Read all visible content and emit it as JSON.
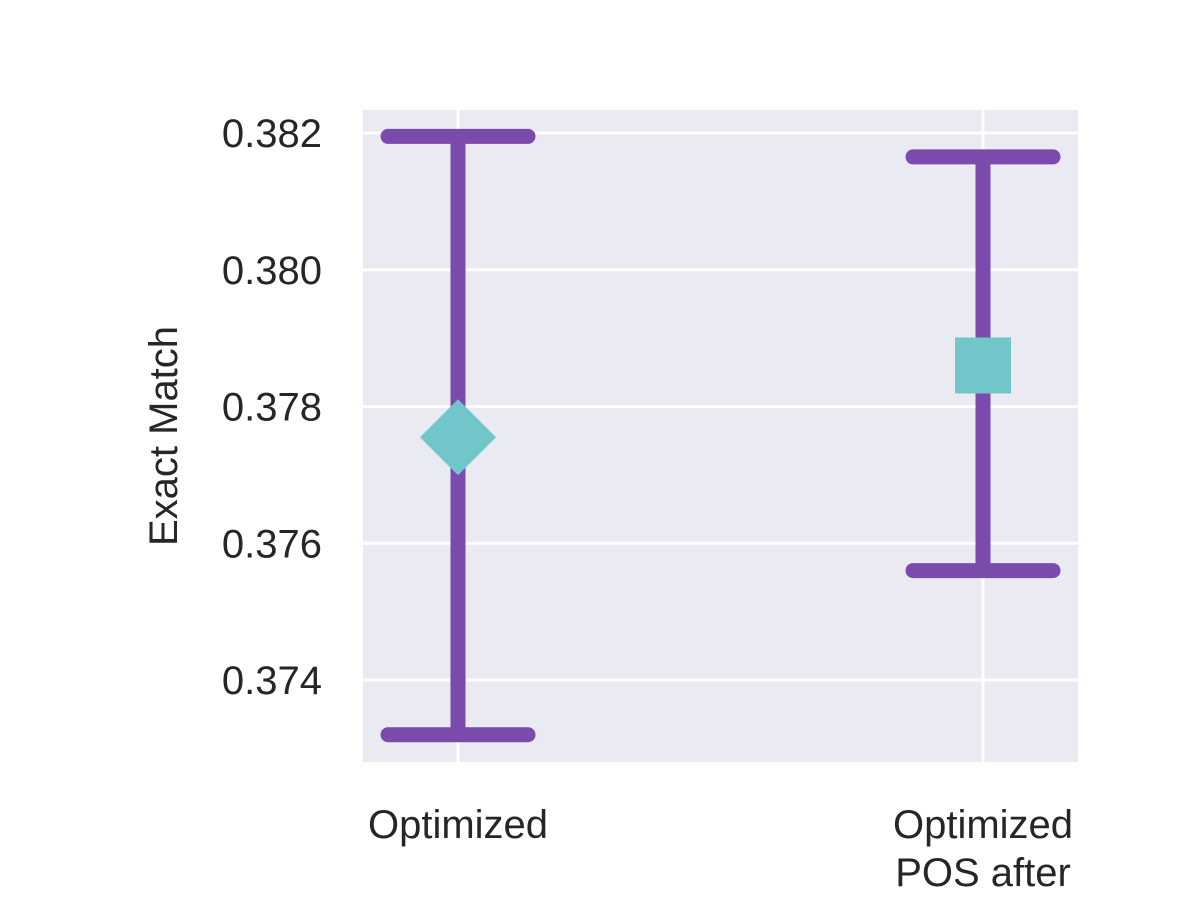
{
  "chart_data": {
    "type": "errorbar",
    "ylabel": "Exact Match",
    "xlabel": "",
    "categories": [
      "Optimized",
      "Optimized\nPOS after"
    ],
    "points": [
      {
        "category": "Optimized",
        "value": 0.37755,
        "lower": 0.3732,
        "upper": 0.38195,
        "marker": "diamond"
      },
      {
        "category": "Optimized\nPOS after",
        "value": 0.3786,
        "lower": 0.3756,
        "upper": 0.38165,
        "marker": "square"
      }
    ],
    "yticks": [
      "0.374",
      "0.376",
      "0.378",
      "0.380",
      "0.382"
    ],
    "ylim": [
      0.3728,
      0.3823
    ],
    "grid": true,
    "colors": {
      "errorbar": "#7a4aad",
      "marker": "#71c6c9",
      "plot_background": "#eaeaf2",
      "grid": "#ffffff",
      "text": "#262626"
    }
  }
}
